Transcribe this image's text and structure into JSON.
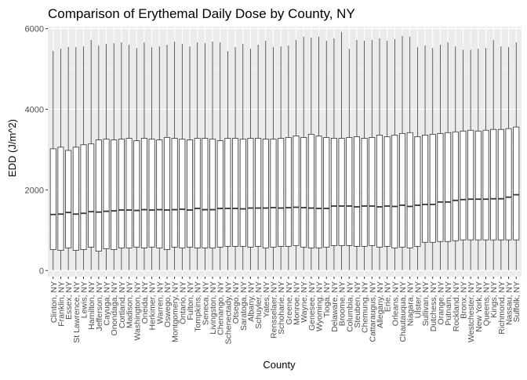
{
  "chart_data": {
    "type": "box",
    "title": "Comparison of Erythemal Daily Dose by County, NY",
    "xlabel": "County",
    "ylabel": "EDD (J/m^2)",
    "ylim": [
      -150,
      6050
    ],
    "yticks": [
      0,
      2000,
      4000,
      6000
    ],
    "ytick_labels": [
      "0",
      "2000",
      "4000",
      "6000"
    ],
    "grid": true,
    "legend": "none",
    "colors": {
      "panel_background": "#ebebeb",
      "grid_major": "#ffffff",
      "grid_minor": "#f5f5f5",
      "box_fill": "#ffffff",
      "box_stroke": "#333333",
      "axis_text": "#4d4d4d",
      "title_text": "#000000"
    },
    "series": [
      {
        "county": "Clinton, NY",
        "min": 10,
        "q1": 520,
        "median": 1390,
        "q3": 3020,
        "max": 5450
      },
      {
        "county": "Franklin, NY",
        "min": 10,
        "q1": 500,
        "median": 1400,
        "q3": 3060,
        "max": 5500
      },
      {
        "county": "Essex, NY",
        "min": 10,
        "q1": 560,
        "median": 1440,
        "q3": 2980,
        "max": 5550
      },
      {
        "county": "St Lawrence, NY",
        "min": 10,
        "q1": 500,
        "median": 1400,
        "q3": 3060,
        "max": 5540
      },
      {
        "county": "Lewis, NY",
        "min": 10,
        "q1": 520,
        "median": 1420,
        "q3": 3120,
        "max": 5560
      },
      {
        "county": "Hamilton, NY",
        "min": 10,
        "q1": 580,
        "median": 1460,
        "q3": 3140,
        "max": 5720
      },
      {
        "county": "Jefferson, NY",
        "min": 10,
        "q1": 480,
        "median": 1450,
        "q3": 3240,
        "max": 5580
      },
      {
        "county": "Cayuga, NY",
        "min": 10,
        "q1": 540,
        "median": 1470,
        "q3": 3260,
        "max": 5620
      },
      {
        "county": "Onondaga, NY",
        "min": 10,
        "q1": 520,
        "median": 1480,
        "q3": 3240,
        "max": 5640
      },
      {
        "county": "Cortland, NY",
        "min": 10,
        "q1": 560,
        "median": 1500,
        "q3": 3260,
        "max": 5660
      },
      {
        "county": "Madison, NY",
        "min": 10,
        "q1": 560,
        "median": 1500,
        "q3": 3280,
        "max": 5600
      },
      {
        "county": "Washington, NY",
        "min": 10,
        "q1": 580,
        "median": 1490,
        "q3": 3220,
        "max": 5520
      },
      {
        "county": "Oneida, NY",
        "min": 10,
        "q1": 560,
        "median": 1510,
        "q3": 3280,
        "max": 5660
      },
      {
        "county": "Herkimer, NY",
        "min": 10,
        "q1": 580,
        "median": 1500,
        "q3": 3260,
        "max": 5540
      },
      {
        "county": "Warren, NY",
        "min": 10,
        "q1": 560,
        "median": 1510,
        "q3": 3240,
        "max": 5560
      },
      {
        "county": "Oswego, NY",
        "min": 10,
        "q1": 520,
        "median": 1500,
        "q3": 3300,
        "max": 5600
      },
      {
        "county": "Montgomery, NY",
        "min": 10,
        "q1": 580,
        "median": 1510,
        "q3": 3280,
        "max": 5680
      },
      {
        "county": "Ontario, NY",
        "min": 10,
        "q1": 560,
        "median": 1520,
        "q3": 3260,
        "max": 5620
      },
      {
        "county": "Fulton, NY",
        "min": 10,
        "q1": 580,
        "median": 1500,
        "q3": 3240,
        "max": 5560
      },
      {
        "county": "Tompkins, NY",
        "min": 10,
        "q1": 560,
        "median": 1540,
        "q3": 3280,
        "max": 5660
      },
      {
        "county": "Seneca, NY",
        "min": 10,
        "q1": 560,
        "median": 1510,
        "q3": 3280,
        "max": 5640
      },
      {
        "county": "Livingston, NY",
        "min": 10,
        "q1": 560,
        "median": 1510,
        "q3": 3260,
        "max": 5680
      },
      {
        "county": "Chenango, NY",
        "min": 10,
        "q1": 580,
        "median": 1540,
        "q3": 3220,
        "max": 5660
      },
      {
        "county": "Schenectady, NY",
        "min": 10,
        "q1": 600,
        "median": 1540,
        "q3": 3280,
        "max": 5440
      },
      {
        "county": "Otsego, NY",
        "min": 10,
        "q1": 600,
        "median": 1540,
        "q3": 3280,
        "max": 5540
      },
      {
        "county": "Saratoga, NY",
        "min": 10,
        "q1": 600,
        "median": 1530,
        "q3": 3260,
        "max": 5620
      },
      {
        "county": "Albany, NY",
        "min": 10,
        "q1": 580,
        "median": 1550,
        "q3": 3280,
        "max": 5500
      },
      {
        "county": "Schuyler, NY",
        "min": 10,
        "q1": 600,
        "median": 1550,
        "q3": 3280,
        "max": 5600
      },
      {
        "county": "Yates, NY",
        "min": 10,
        "q1": 560,
        "median": 1550,
        "q3": 3260,
        "max": 5700
      },
      {
        "county": "Rensselaer, NY",
        "min": 10,
        "q1": 580,
        "median": 1560,
        "q3": 3260,
        "max": 5540
      },
      {
        "county": "Schoharie, NY",
        "min": 10,
        "q1": 600,
        "median": 1550,
        "q3": 3280,
        "max": 5560
      },
      {
        "county": "Greene, NY",
        "min": 10,
        "q1": 600,
        "median": 1560,
        "q3": 3300,
        "max": 5580
      },
      {
        "county": "Monroe, NY",
        "min": 10,
        "q1": 620,
        "median": 1570,
        "q3": 3340,
        "max": 5720
      },
      {
        "county": "Wayne, NY",
        "min": 10,
        "q1": 580,
        "median": 1560,
        "q3": 3300,
        "max": 5800
      },
      {
        "county": "Genesee, NY",
        "min": 10,
        "q1": 560,
        "median": 1550,
        "q3": 3380,
        "max": 5780
      },
      {
        "county": "Wyoming, NY",
        "min": 10,
        "q1": 560,
        "median": 1540,
        "q3": 3340,
        "max": 5800
      },
      {
        "county": "Tioga, NY",
        "min": 10,
        "q1": 580,
        "median": 1540,
        "q3": 3300,
        "max": 5700
      },
      {
        "county": "Delaware, NY",
        "min": 10,
        "q1": 620,
        "median": 1600,
        "q3": 3280,
        "max": 5760
      },
      {
        "county": "Broome, NY",
        "min": 10,
        "q1": 620,
        "median": 1600,
        "q3": 3280,
        "max": 5920
      },
      {
        "county": "Columbia, NY",
        "min": 10,
        "q1": 620,
        "median": 1600,
        "q3": 3300,
        "max": 5500
      },
      {
        "county": "Steuben, NY",
        "min": 10,
        "q1": 600,
        "median": 1580,
        "q3": 3320,
        "max": 5720
      },
      {
        "county": "Chemung, NY",
        "min": 10,
        "q1": 600,
        "median": 1600,
        "q3": 3280,
        "max": 5700
      },
      {
        "county": "Cattaraugus, NY",
        "min": 10,
        "q1": 620,
        "median": 1600,
        "q3": 3300,
        "max": 5720
      },
      {
        "county": "Allegany, NY",
        "min": 10,
        "q1": 580,
        "median": 1580,
        "q3": 3360,
        "max": 5760
      },
      {
        "county": "Erie, NY",
        "min": 10,
        "q1": 600,
        "median": 1600,
        "q3": 3320,
        "max": 5700
      },
      {
        "county": "Orleans, NY",
        "min": 10,
        "q1": 560,
        "median": 1590,
        "q3": 3360,
        "max": 5740
      },
      {
        "county": "Chautauqua, NY",
        "min": 10,
        "q1": 580,
        "median": 1620,
        "q3": 3400,
        "max": 5820
      },
      {
        "county": "Niagara, NY",
        "min": 10,
        "q1": 560,
        "median": 1590,
        "q3": 3420,
        "max": 5800
      },
      {
        "county": "Ulster, NY",
        "min": 10,
        "q1": 600,
        "median": 1620,
        "q3": 3320,
        "max": 5540
      },
      {
        "county": "Sullivan, NY",
        "min": 10,
        "q1": 700,
        "median": 1640,
        "q3": 3360,
        "max": 5580
      },
      {
        "county": "Dutchess, NY",
        "min": 10,
        "q1": 700,
        "median": 1640,
        "q3": 3380,
        "max": 5520
      },
      {
        "county": "Orange, NY",
        "min": 10,
        "q1": 720,
        "median": 1700,
        "q3": 3400,
        "max": 5600
      },
      {
        "county": "Putnam, NY",
        "min": 10,
        "q1": 720,
        "median": 1700,
        "q3": 3420,
        "max": 5660
      },
      {
        "county": "Rockland, NY",
        "min": 10,
        "q1": 740,
        "median": 1740,
        "q3": 3440,
        "max": 5560
      },
      {
        "county": "Bronx, NY",
        "min": 10,
        "q1": 760,
        "median": 1760,
        "q3": 3460,
        "max": 5480
      },
      {
        "county": "Westchester, NY",
        "min": 10,
        "q1": 760,
        "median": 1770,
        "q3": 3480,
        "max": 5480
      },
      {
        "county": "New York, NY",
        "min": 10,
        "q1": 760,
        "median": 1770,
        "q3": 3460,
        "max": 5500
      },
      {
        "county": "Queens, NY",
        "min": 10,
        "q1": 760,
        "median": 1770,
        "q3": 3480,
        "max": 5520
      },
      {
        "county": "Kings, NY",
        "min": 10,
        "q1": 760,
        "median": 1780,
        "q3": 3500,
        "max": 5720
      },
      {
        "county": "Richmond, NY",
        "min": 10,
        "q1": 760,
        "median": 1780,
        "q3": 3500,
        "max": 5560
      },
      {
        "county": "Nassau, NY",
        "min": 10,
        "q1": 760,
        "median": 1820,
        "q3": 3520,
        "max": 5540
      },
      {
        "county": "Suffolk, NY",
        "min": 10,
        "q1": 760,
        "median": 1880,
        "q3": 3560,
        "max": 5660
      }
    ]
  }
}
